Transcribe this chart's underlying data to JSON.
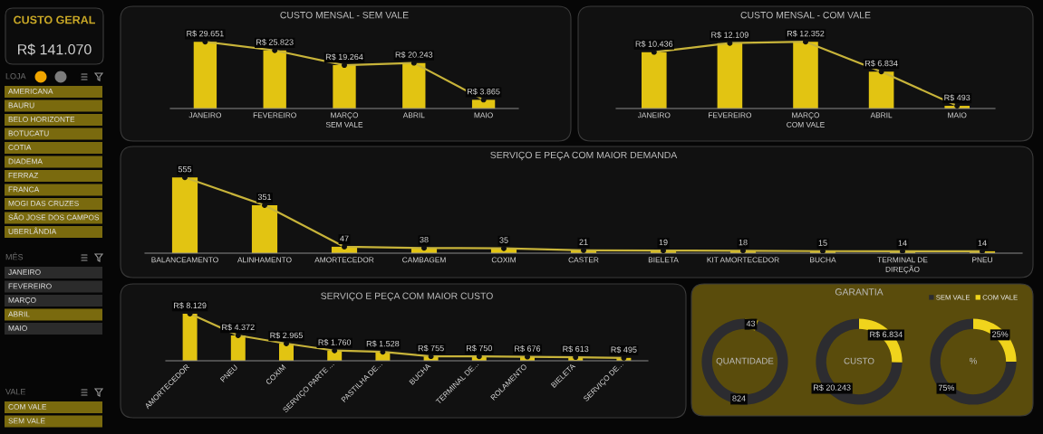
{
  "chart_data": [
    {
      "type": "other",
      "title": "CUSTO GERAL",
      "annotations": [
        "R$ 141.070"
      ]
    },
    {
      "type": "other",
      "title": "LOJA",
      "categories": [
        "AMERICANA",
        "BAURU",
        "BELO HORIZONTE",
        "BOTUCATU",
        "COTIA",
        "DIADEMA",
        "FERRAZ",
        "FRANCA",
        "MOGI DAS CRUZES",
        "SÃO JOSE DOS CAMPOS",
        "UBERLÂNDIA"
      ],
      "colors": [
        "#7a6a0e",
        "#7a6a0e",
        "#7a6a0e",
        "#7a6a0e",
        "#7a6a0e",
        "#7a6a0e",
        "#7a6a0e",
        "#7a6a0e",
        "#7a6a0e",
        "#7a6a0e",
        "#7a6a0e"
      ]
    },
    {
      "type": "other",
      "title": "MÊS",
      "categories": [
        "JANEIRO",
        "FEVEREIRO",
        "MARÇO",
        "ABRIL",
        "MAIO"
      ],
      "colors": [
        "#2b2b2b",
        "#2b2b2b",
        "#2b2b2b",
        "#7a6a0e",
        "#2b2b2b"
      ]
    },
    {
      "type": "other",
      "title": "VALE",
      "categories": [
        "COM VALE",
        "SEM VALE"
      ],
      "colors": [
        "#7a6a0e",
        "#7a6a0e"
      ]
    },
    {
      "type": "bar",
      "title": "CUSTO MENSAL - SEM VALE",
      "xlabel": "SEM VALE",
      "categories": [
        "JANEIRO",
        "FEVEREIRO",
        "MARÇO",
        "ABRIL",
        "MAIO"
      ],
      "series": [
        {
          "type": "bar",
          "color": "#e2c412",
          "values": [
            29651,
            25823,
            19264,
            20243,
            3865
          ],
          "value_labels": [
            "R$ 29.651",
            "R$ 25.823",
            "R$ 19.264",
            "R$ 20.243",
            "R$ 3.865"
          ]
        },
        {
          "type": "line",
          "color": "#c8b43a",
          "values": [
            29651,
            25823,
            19264,
            20243,
            3865
          ]
        }
      ],
      "marker": "circle",
      "tick_labels": "x"
    },
    {
      "type": "bar",
      "title": "CUSTO MENSAL - COM VALE",
      "xlabel": "COM VALE",
      "categories": [
        "JANEIRO",
        "FEVEREIRO",
        "MARÇO",
        "ABRIL",
        "MAIO"
      ],
      "series": [
        {
          "type": "bar",
          "color": "#e2c412",
          "values": [
            10436,
            12109,
            12352,
            6834,
            493
          ],
          "value_labels": [
            "R$ 10.436",
            "R$ 12.109",
            "R$ 12.352",
            "R$ 6.834",
            "R$ 493"
          ]
        },
        {
          "type": "line",
          "color": "#c8b43a",
          "values": [
            10436,
            12109,
            12352,
            6834,
            493
          ]
        }
      ],
      "marker": "circle",
      "tick_labels": "x"
    },
    {
      "type": "bar",
      "title": "SERVIÇO E PEÇA COM MAIOR DEMANDA",
      "categories": [
        "BALANCEAMENTO",
        "ALINHAMENTO",
        "AMORTECEDOR",
        "CAMBAGEM",
        "COXIM",
        "CASTER",
        "BIELETA",
        "KIT AMORTECEDOR",
        "BUCHA",
        "TERMINAL DE\nDIREÇÃO",
        "PNEU"
      ],
      "series": [
        {
          "type": "bar",
          "color": "#e2c412",
          "values": [
            555,
            351,
            47,
            38,
            35,
            21,
            19,
            18,
            15,
            14,
            14
          ],
          "value_labels": [
            "555",
            "351",
            "47",
            "38",
            "35",
            "21",
            "19",
            "18",
            "15",
            "14",
            "14"
          ]
        },
        {
          "type": "line",
          "color": "#c8b43a",
          "values": [
            555,
            351,
            47,
            38,
            35,
            21,
            19,
            18,
            15,
            14,
            14
          ]
        }
      ],
      "marker": "circle",
      "tick_labels": "x"
    },
    {
      "type": "bar",
      "title": "SERVIÇO E PEÇA COM MAIOR CUSTO",
      "categories": [
        "AMORTECEDOR",
        "PNEU",
        "COXIM",
        "SERVIÇO PARTE ...",
        "PASTILHA DE...",
        "BUCHA",
        "TERMINAL DE...",
        "ROLAMENTO",
        "BIELETA",
        "SERVIÇO DE..."
      ],
      "series": [
        {
          "type": "bar",
          "color": "#e2c412",
          "values": [
            8129,
            4372,
            2965,
            1760,
            1528,
            755,
            750,
            676,
            613,
            495
          ],
          "value_labels": [
            "R$ 8.129",
            "R$ 4.372",
            "R$ 2.965",
            "R$ 1.760",
            "R$ 1.528",
            "R$ 755",
            "R$ 750",
            "R$ 676",
            "R$ 613",
            "R$ 495"
          ]
        },
        {
          "type": "line",
          "color": "#c8b43a",
          "values": [
            8129,
            4372,
            2965,
            1760,
            1528,
            755,
            750,
            676,
            613,
            495
          ]
        }
      ],
      "marker": "circle",
      "tick_labels": "x"
    },
    {
      "type": "donut",
      "categories": [
        "SEM VALE",
        "COM VALE"
      ],
      "values": [
        824,
        43
      ],
      "colors": [
        "#2c2c30",
        "#f0d41c"
      ],
      "data_labels": true,
      "annotations": [
        "QUANTIDADE"
      ],
      "legend": "top right"
    },
    {
      "type": "donut",
      "title": "GARANTIA",
      "categories": [
        null,
        null
      ],
      "values": [
        20243,
        6834
      ],
      "colors": [
        "#2c2c30",
        "#f0d41c"
      ],
      "value_labels": [
        "R$ 20.243",
        "R$ 6.834"
      ],
      "annotations": [
        "CUSTO"
      ]
    },
    {
      "type": "donut",
      "categories": [
        null,
        null
      ],
      "values": [
        75,
        25
      ],
      "colors": [
        "#2c2c30",
        "#f0d41c"
      ],
      "value_labels": [
        "75%",
        "25%"
      ],
      "annotations": [
        "%"
      ]
    }
  ]
}
